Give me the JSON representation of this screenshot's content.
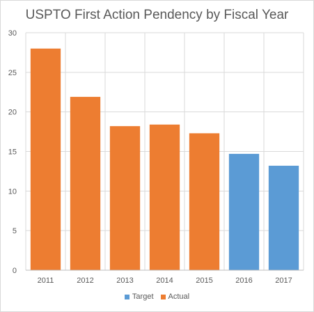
{
  "chart_data": {
    "type": "bar",
    "title": "USPTO First Action Pendency by Fiscal Year",
    "xlabel": "",
    "ylabel": "",
    "categories": [
      "2011",
      "2012",
      "2013",
      "2014",
      "2015",
      "2016",
      "2017"
    ],
    "series": [
      {
        "name": "Target",
        "color": "#5b9bd5",
        "values": [
          null,
          null,
          null,
          null,
          null,
          14.7,
          13.2
        ]
      },
      {
        "name": "Actual",
        "color": "#ed7d31",
        "values": [
          28.0,
          21.9,
          18.2,
          18.4,
          17.3,
          null,
          null
        ]
      }
    ],
    "ylim": [
      0,
      30
    ],
    "yticks": [
      "0",
      "5",
      "10",
      "15",
      "20",
      "25",
      "30"
    ],
    "grid": true,
    "legend": "bottom"
  }
}
